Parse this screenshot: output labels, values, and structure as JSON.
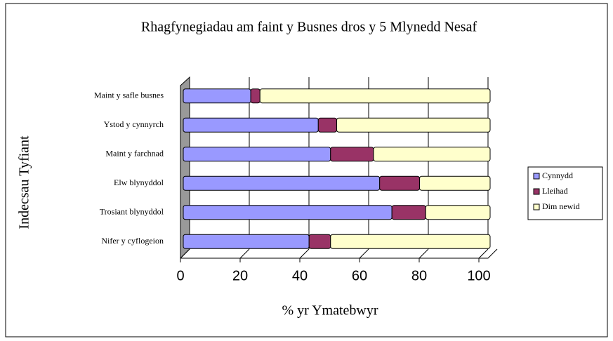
{
  "chart_data": {
    "type": "stacked-bar-horizontal",
    "title": "Rhagfynegiadau am faint y Busnes dros y 5 Mlynedd Nesaf",
    "x_label": "% yr Ymatebwyr",
    "y_label": "Indecsau Tyfiant",
    "categories": [
      "Maint y safle busnes",
      "Ystod y cynnyrch",
      "Maint y farchnad",
      "Elw blynyddol",
      "Trosiant blynyddol",
      "Nifer y cyflogeion"
    ],
    "series": [
      {
        "name": "Cynnydd",
        "color": "#9999ff",
        "values": [
          22,
          44,
          48,
          64,
          68,
          41
        ]
      },
      {
        "name": "Lleihad",
        "color": "#993366",
        "values": [
          3,
          6,
          14,
          13,
          11,
          7
        ]
      },
      {
        "name": "Dim newid",
        "color": "#ffffcc",
        "values": [
          75,
          50,
          38,
          23,
          21,
          52
        ]
      }
    ],
    "xlim": [
      0,
      100
    ],
    "xticks": [
      0,
      20,
      40,
      60,
      80,
      100
    ],
    "grid": true,
    "legend": "right"
  }
}
